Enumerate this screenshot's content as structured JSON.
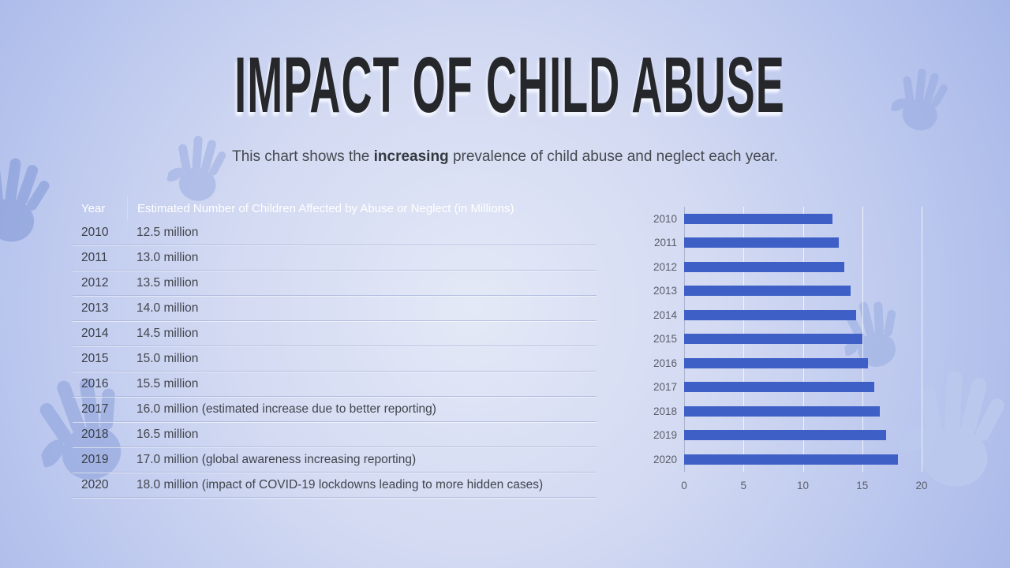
{
  "slide": {
    "title": "IMPACT OF CHILD ABUSE",
    "subtitle": {
      "prefix": "This chart shows the ",
      "bold": "increasing",
      "suffix": " prevalence of child abuse and neglect each year."
    }
  },
  "table": {
    "headers": {
      "year": "Year",
      "value": "Estimated Number of Children Affected by Abuse or Neglect (in Millions)"
    },
    "rows": [
      {
        "year": "2010",
        "value": "12.5 million"
      },
      {
        "year": "2011",
        "value": "13.0 million"
      },
      {
        "year": "2012",
        "value": "13.5 million"
      },
      {
        "year": "2013",
        "value": "14.0 million"
      },
      {
        "year": "2014",
        "value": "14.5 million"
      },
      {
        "year": "2015",
        "value": "15.0 million"
      },
      {
        "year": "2016",
        "value": "15.5 million"
      },
      {
        "year": "2017",
        "value": "16.0 million (estimated increase due to better reporting)"
      },
      {
        "year": "2018",
        "value": "16.5 million"
      },
      {
        "year": "2019",
        "value": "17.0 million (global awareness increasing reporting)"
      },
      {
        "year": "2020",
        "value": "18.0 million (impact of COVID-19 lockdowns leading to more hidden cases)"
      }
    ]
  },
  "chart_data": {
    "type": "bar",
    "orientation": "horizontal",
    "title": "",
    "categories": [
      "2010",
      "2011",
      "2012",
      "2013",
      "2014",
      "2015",
      "2016",
      "2017",
      "2018",
      "2019",
      "2020"
    ],
    "values": [
      12.5,
      13.0,
      13.5,
      14.0,
      14.5,
      15.0,
      15.5,
      16.0,
      16.5,
      17.0,
      18.0
    ],
    "xlabel": "",
    "ylabel": "",
    "xlim": [
      0,
      20
    ],
    "x_ticks": [
      0,
      5,
      10,
      15,
      20
    ],
    "grid": true,
    "legend": false,
    "bar_color": "#3e5fc6"
  },
  "colors": {
    "header_bg": "#3f61c3",
    "bar": "#3e5fc6",
    "title_text": "#26272b",
    "background_center": "#e4e9f7",
    "background_edge": "#a3b4e7"
  }
}
